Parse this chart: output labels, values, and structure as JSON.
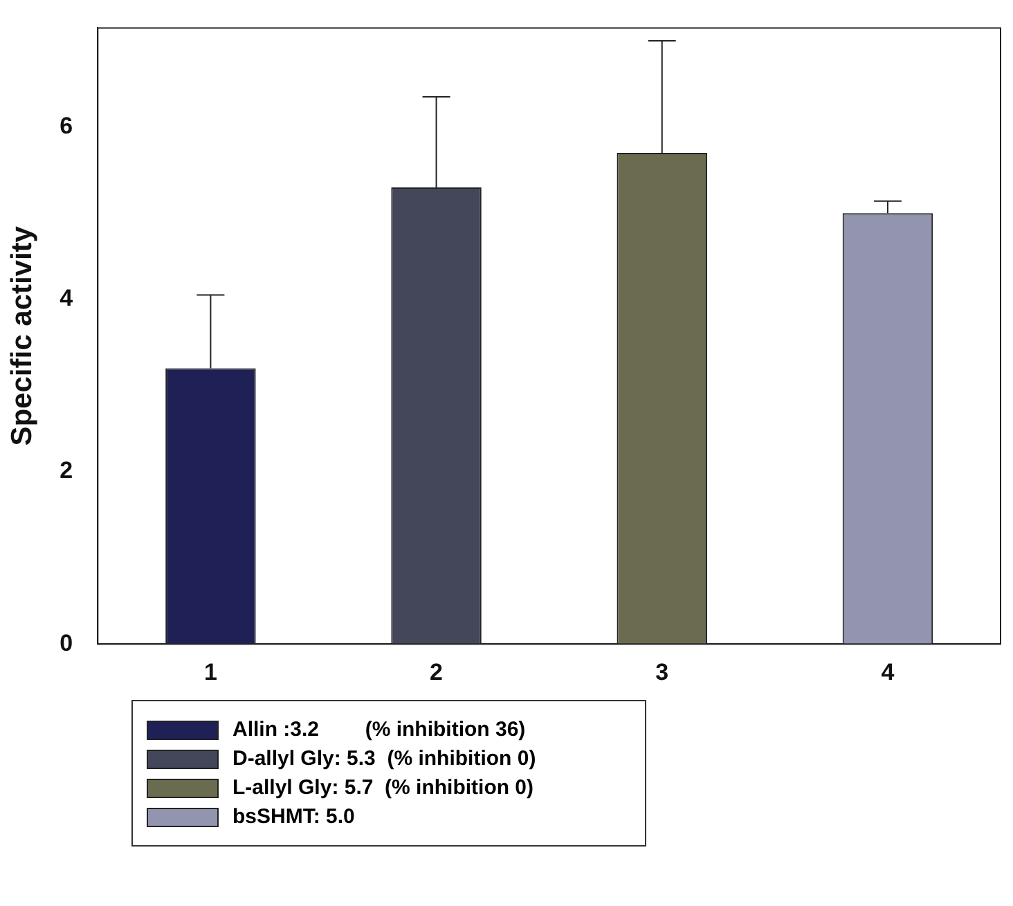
{
  "chart_data": {
    "type": "bar",
    "ylabel": "Specific activity",
    "categories": [
      "1",
      "2",
      "3",
      "4"
    ],
    "series": [
      {
        "name": "Allin :3.2        (% inhibition 36)",
        "color": "#1f2156",
        "values": [
          3.2,
          null,
          null,
          null
        ],
        "errors": [
          [
            3.2,
            4.05
          ],
          null,
          null,
          null
        ]
      },
      {
        "name": "D-allyl Gly: 5.3  (% inhibition 0)",
        "color": "#44475a",
        "values": [
          null,
          5.3,
          null,
          null
        ],
        "errors": [
          null,
          [
            5.3,
            6.35
          ],
          null,
          null
        ]
      },
      {
        "name": "L-allyl Gly: 5.7  (% inhibition 0)",
        "color": "#6b6b50",
        "values": [
          null,
          null,
          5.7,
          null
        ],
        "errors": [
          null,
          null,
          [
            5.7,
            7.0
          ],
          null
        ]
      },
      {
        "name": "bsSHMT: 5.0",
        "color": "#9394b0",
        "values": [
          null,
          null,
          null,
          5.0
        ],
        "errors": [
          null,
          null,
          null,
          [
            5.0,
            5.14
          ]
        ]
      }
    ],
    "ylim": [
      0,
      7.15
    ],
    "yticks": [
      0,
      2,
      4,
      6
    ],
    "grid": false,
    "legend": "bottom"
  }
}
